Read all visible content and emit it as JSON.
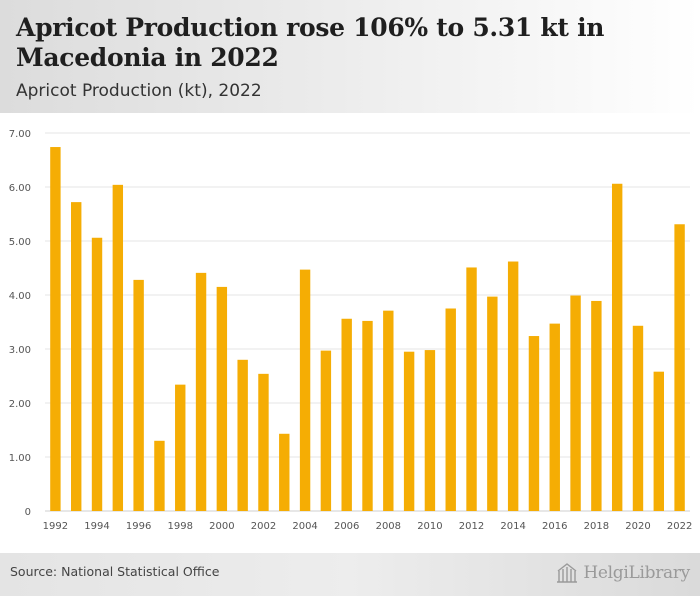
{
  "header": {
    "title": "Apricot Production rose 106% to 5.31 kt in Macedonia in 2022",
    "subtitle": "Apricot Production (kt), 2022"
  },
  "footer": {
    "source": "Source: National Statistical Office",
    "logo_text": "HelgiLibrary"
  },
  "colors": {
    "bar": "#F5AD04",
    "grid": "#e6e6e6",
    "axis_text": "#555555"
  },
  "chart_data": {
    "type": "bar",
    "x": [
      1992,
      1993,
      1994,
      1995,
      1996,
      1997,
      1998,
      1999,
      2000,
      2001,
      2002,
      2003,
      2004,
      2005,
      2006,
      2007,
      2008,
      2009,
      2010,
      2011,
      2012,
      2013,
      2014,
      2015,
      2016,
      2017,
      2018,
      2019,
      2020,
      2021,
      2022
    ],
    "values": [
      6.74,
      5.72,
      5.06,
      6.04,
      4.28,
      1.3,
      2.34,
      4.41,
      4.15,
      2.8,
      2.54,
      1.43,
      4.47,
      2.97,
      3.56,
      3.52,
      3.71,
      2.95,
      2.98,
      3.75,
      4.51,
      3.97,
      4.62,
      3.24,
      3.47,
      3.99,
      3.89,
      6.06,
      3.43,
      2.58,
      5.31
    ],
    "x_tick_labels": [
      "1992",
      "1994",
      "1996",
      "1998",
      "2000",
      "2002",
      "2004",
      "2006",
      "2008",
      "2010",
      "2012",
      "2014",
      "2016",
      "2018",
      "2020",
      "2022"
    ],
    "y_ticks": [
      0,
      1,
      2,
      3,
      4,
      5,
      6,
      7
    ],
    "y_tick_labels": [
      "0",
      "1.00",
      "2.00",
      "3.00",
      "4.00",
      "5.00",
      "6.00",
      "7.00"
    ],
    "ylim": [
      0,
      7
    ],
    "grid": true,
    "legend": "none"
  }
}
